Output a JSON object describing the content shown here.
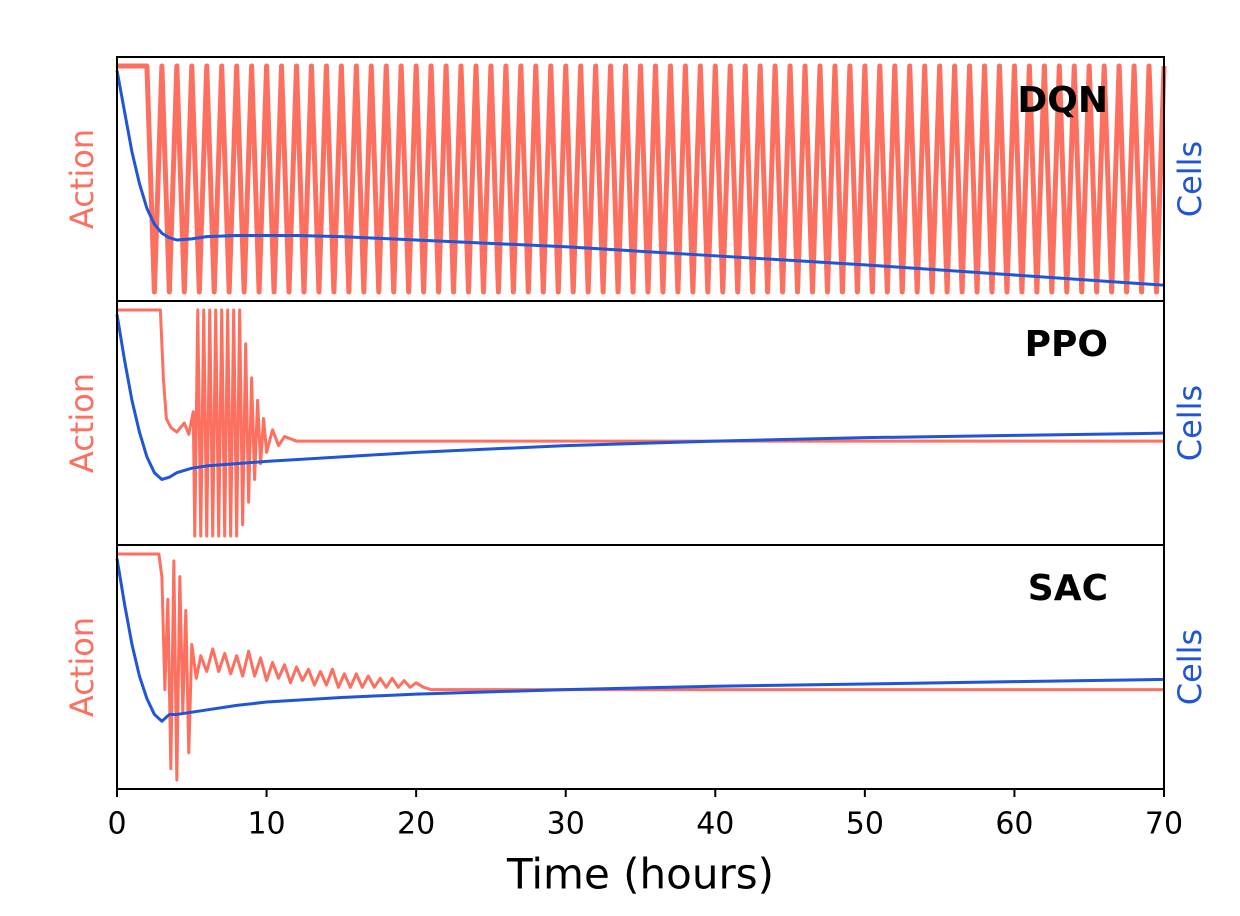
{
  "chart_data": [
    {
      "type": "line",
      "title": "DQN",
      "ylabel": "Action",
      "y2label": "Cells",
      "xlim": [
        0,
        70
      ],
      "ylim": [
        -0.04,
        1.04
      ],
      "y2lim": [
        -0.04,
        1.04
      ],
      "series": [
        {
          "name": "Action",
          "color": "#fd6f5f",
          "x": [
            0,
            2,
            2.5,
            3,
            3.5,
            4,
            4.5,
            5,
            5.5,
            6,
            6.5,
            7,
            7.5,
            8,
            8.5,
            9,
            9.5,
            10,
            10.5,
            11,
            11.5,
            12,
            12.5,
            13,
            13.5,
            14,
            14.5,
            15,
            15.5,
            16,
            16.5,
            17,
            17.5,
            18,
            18.5,
            19,
            19.5,
            20,
            20.5,
            21,
            21.5,
            22,
            22.5,
            23,
            23.5,
            24,
            24.5,
            25,
            25.5,
            26,
            26.5,
            27,
            27.5,
            28,
            28.5,
            29,
            29.5,
            30,
            30.5,
            31,
            31.5,
            32,
            32.5,
            33,
            33.5,
            34,
            34.5,
            35,
            35.5,
            36,
            36.5,
            37,
            37.5,
            38,
            38.5,
            39,
            39.5,
            40,
            40.5,
            41,
            41.5,
            42,
            42.5,
            43,
            43.5,
            44,
            44.5,
            45,
            45.5,
            46,
            46.5,
            47,
            47.5,
            48,
            48.5,
            49,
            49.5,
            50,
            50.5,
            51,
            51.5,
            52,
            52.5,
            53,
            53.5,
            54,
            54.5,
            55,
            55.5,
            56,
            56.5,
            57,
            57.5,
            58,
            58.5,
            59,
            59.5,
            60,
            60.5,
            61,
            61.5,
            62,
            62.5,
            63,
            63.5,
            64,
            64.5,
            65,
            65.5,
            66,
            66.5,
            67,
            67.5,
            68,
            68.5,
            69,
            69.5,
            70
          ],
          "values": [
            1,
            1,
            0,
            1,
            0,
            1,
            0,
            1,
            0,
            1,
            0,
            1,
            0,
            1,
            0,
            1,
            0,
            1,
            0,
            1,
            0,
            1,
            0,
            1,
            0,
            1,
            0,
            1,
            0,
            1,
            0,
            1,
            0,
            1,
            0,
            1,
            0,
            1,
            0,
            1,
            0,
            1,
            0,
            1,
            0,
            1,
            0,
            1,
            0,
            1,
            0,
            1,
            0,
            1,
            0,
            1,
            0,
            1,
            0,
            1,
            0,
            1,
            0,
            1,
            0,
            1,
            0,
            1,
            0,
            1,
            0,
            1,
            0,
            1,
            0,
            1,
            0,
            1,
            0,
            1,
            0,
            1,
            0,
            1,
            0,
            1,
            0,
            1,
            0,
            1,
            0,
            1,
            0,
            1,
            0,
            1,
            0,
            1,
            0,
            1,
            0,
            1,
            0,
            1,
            0,
            1,
            0,
            1,
            0,
            1,
            0,
            1,
            0,
            1,
            0,
            1,
            0,
            1,
            0,
            1,
            0,
            1,
            0,
            1,
            0,
            1,
            0,
            1,
            0,
            1,
            0,
            1,
            0,
            1,
            0,
            1,
            0,
            1
          ]
        },
        {
          "name": "Cells",
          "color": "#1f55d6",
          "axis": "y2",
          "x": [
            0,
            0.5,
            1,
            1.5,
            2,
            2.5,
            3,
            3.5,
            4,
            5,
            6,
            8,
            10,
            12,
            15,
            20,
            30,
            40,
            50,
            60,
            70
          ],
          "values": [
            0.98,
            0.8,
            0.62,
            0.48,
            0.37,
            0.3,
            0.26,
            0.24,
            0.23,
            0.235,
            0.245,
            0.25,
            0.25,
            0.25,
            0.245,
            0.23,
            0.2,
            0.16,
            0.12,
            0.075,
            0.03
          ]
        }
      ]
    },
    {
      "type": "line",
      "title": "PPO",
      "ylabel": "Action",
      "y2label": "Cells",
      "xlim": [
        0,
        70
      ],
      "ylim": [
        -0.04,
        1.04
      ],
      "y2lim": [
        -0.04,
        1.04
      ],
      "series": [
        {
          "name": "Action",
          "color": "#fd6f5f",
          "x": [
            0,
            2.9,
            3.1,
            3.3,
            3.6,
            4,
            4.5,
            4.8,
            5.1,
            5.2,
            5.4,
            5.6,
            5.8,
            6,
            6.2,
            6.4,
            6.6,
            6.8,
            7,
            7.2,
            7.4,
            7.6,
            7.8,
            8,
            8.2,
            8.4,
            8.6,
            8.8,
            9,
            9.2,
            9.4,
            9.6,
            9.8,
            10,
            10.4,
            10.8,
            11.2,
            12,
            20,
            70
          ],
          "values": [
            1,
            1,
            0.7,
            0.52,
            0.48,
            0.46,
            0.5,
            0.45,
            0.55,
            0,
            1,
            0,
            1,
            0,
            1,
            0,
            1,
            0,
            1,
            0,
            1,
            0,
            1,
            0,
            1,
            0.05,
            0.85,
            0.15,
            0.7,
            0.25,
            0.6,
            0.32,
            0.52,
            0.37,
            0.47,
            0.4,
            0.44,
            0.42,
            0.42,
            0.42
          ]
        },
        {
          "name": "Cells",
          "color": "#1f55d6",
          "axis": "y2",
          "x": [
            0,
            0.5,
            1,
            1.5,
            2,
            2.5,
            3,
            3.5,
            4,
            5,
            6,
            8,
            10,
            15,
            20,
            30,
            40,
            50,
            60,
            70
          ],
          "values": [
            0.98,
            0.78,
            0.6,
            0.46,
            0.35,
            0.28,
            0.25,
            0.26,
            0.28,
            0.3,
            0.31,
            0.32,
            0.33,
            0.35,
            0.37,
            0.4,
            0.42,
            0.435,
            0.445,
            0.455
          ]
        }
      ]
    },
    {
      "type": "line",
      "title": "SAC",
      "ylabel": "Action",
      "y2label": "Cells",
      "xlabel": "Time (hours)",
      "xlim": [
        0,
        70
      ],
      "ylim": [
        -0.04,
        1.04
      ],
      "y2lim": [
        -0.04,
        1.04
      ],
      "xticks": [
        0,
        10,
        20,
        30,
        40,
        50,
        60,
        70
      ],
      "series": [
        {
          "name": "Action",
          "color": "#fd6f5f",
          "x": [
            0,
            2.8,
            3,
            3.2,
            3.4,
            3.6,
            3.8,
            4,
            4.2,
            4.4,
            4.6,
            4.8,
            5,
            5.3,
            5.6,
            6,
            6.4,
            6.8,
            7.2,
            7.6,
            8,
            8.4,
            8.8,
            9.2,
            9.6,
            10,
            10.4,
            10.8,
            11.2,
            11.6,
            12,
            12.4,
            12.8,
            13.2,
            13.6,
            14,
            14.4,
            14.8,
            15.2,
            15.6,
            16,
            16.4,
            16.8,
            17.2,
            17.6,
            18,
            18.4,
            18.8,
            19.2,
            19.6,
            20,
            20.5,
            21,
            70
          ],
          "values": [
            1,
            1,
            0.9,
            0.4,
            0.8,
            0.05,
            0.97,
            0,
            0.9,
            0.3,
            0.75,
            0.12,
            0.6,
            0.45,
            0.55,
            0.48,
            0.58,
            0.48,
            0.56,
            0.47,
            0.55,
            0.46,
            0.57,
            0.46,
            0.54,
            0.44,
            0.52,
            0.45,
            0.51,
            0.43,
            0.5,
            0.44,
            0.49,
            0.42,
            0.48,
            0.42,
            0.49,
            0.41,
            0.47,
            0.41,
            0.47,
            0.41,
            0.46,
            0.41,
            0.45,
            0.41,
            0.45,
            0.41,
            0.44,
            0.41,
            0.43,
            0.41,
            0.4,
            0.4
          ]
        },
        {
          "name": "Cells",
          "color": "#1f55d6",
          "axis": "y2",
          "x": [
            0,
            0.5,
            1,
            1.5,
            2,
            2.5,
            3,
            3.5,
            4,
            5,
            6,
            8,
            10,
            15,
            20,
            30,
            40,
            50,
            60,
            70
          ],
          "values": [
            0.98,
            0.78,
            0.6,
            0.46,
            0.36,
            0.29,
            0.26,
            0.29,
            0.29,
            0.3,
            0.31,
            0.33,
            0.345,
            0.365,
            0.38,
            0.4,
            0.415,
            0.425,
            0.435,
            0.445
          ]
        }
      ]
    }
  ]
}
